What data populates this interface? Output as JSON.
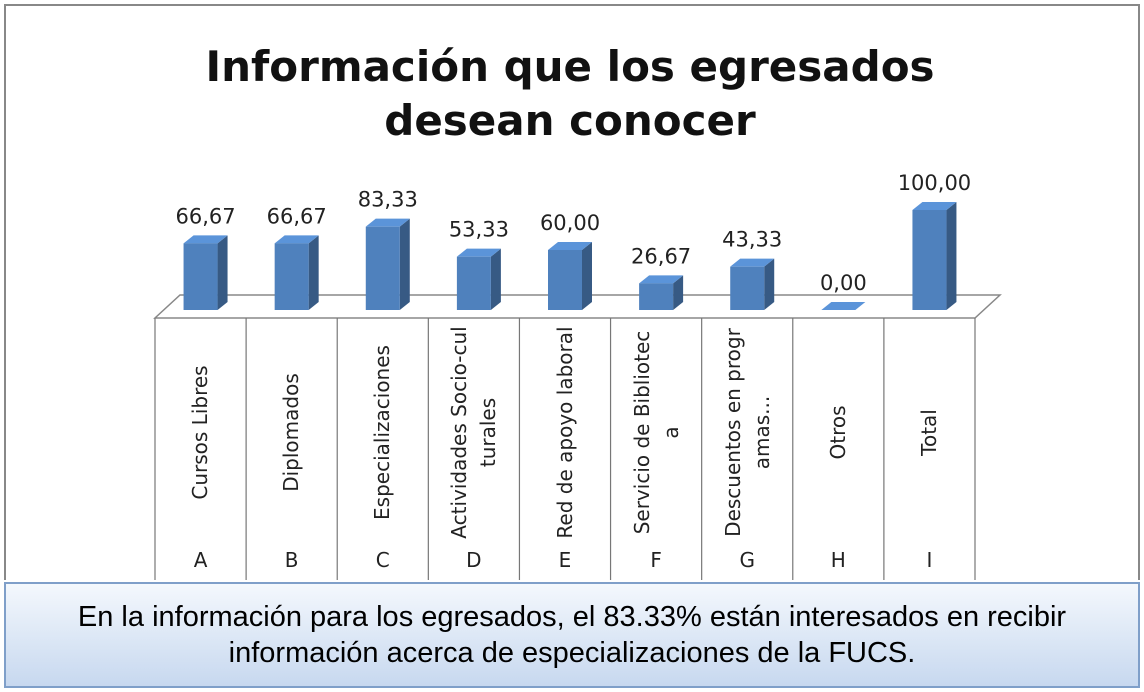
{
  "chart_data": {
    "type": "bar3d",
    "title": "Información que los egresados desean conocer",
    "categories": [
      "Cursos Libres",
      "Diplomados",
      "Especializaciones",
      "Actividades Socio-culturales",
      "Red de apoyo laboral",
      "Servicio de Biblioteca",
      "Descuentos en programas...",
      "Otros",
      "Total"
    ],
    "letters": [
      "A",
      "B",
      "C",
      "D",
      "E",
      "F",
      "G",
      "H",
      "I"
    ],
    "values": [
      66.67,
      66.67,
      83.33,
      53.33,
      60.0,
      26.67,
      43.33,
      0.0,
      100.0
    ],
    "value_labels": [
      "66,67",
      "66,67",
      "83,33",
      "53,33",
      "60,00",
      "26,67",
      "43,33",
      "0,00",
      "100,00"
    ],
    "color": "#4f81bd"
  },
  "caption": "En la información para los egresados, el 83.33% están interesados en recibir información acerca de especializaciones de la FUCS."
}
